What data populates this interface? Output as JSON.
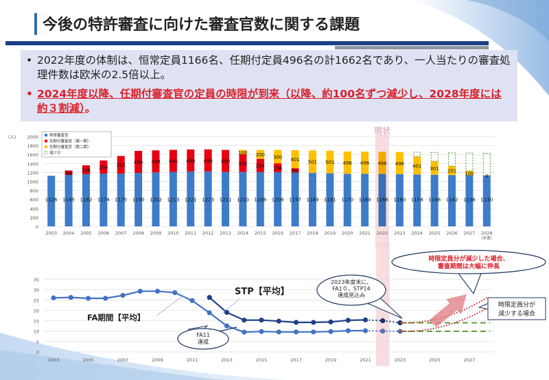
{
  "header": {
    "title": "今後の特許審査に向けた審査官数に関する課題"
  },
  "bullets": [
    {
      "marker": "•",
      "text": "2022年度の体制は、恒常定員1166名、任期付定員496名の計1662名であり、一人当たりの審査処理件数は欧米の2.5倍以上。"
    },
    {
      "marker": "•",
      "text_underlined": "2024年度以降、任期付審査官の定員の時限が到来（以降、約100名ずつ減少し、2028年度には約３割減）",
      "text_tail": "。"
    }
  ],
  "colors": {
    "regular": "#3d7cc9",
    "first": "#e60012",
    "second": "#ffc000",
    "reduction": "#5e9f3c",
    "fa_line": "#4472c4",
    "stp_line": "#1f3f88",
    "highlight": "#f6d5d8",
    "accent_red": "#d9202a"
  },
  "chart_data": [
    {
      "type": "bar",
      "stacked": true,
      "ylabel": "(人)",
      "xlabel_suffix": "(年度)",
      "ylim": [
        0,
        2000
      ],
      "yticks": [
        0,
        200,
        400,
        600,
        800,
        1000,
        1200,
        1400,
        1600,
        1800,
        2000
      ],
      "grid": true,
      "legend_position": "top-left",
      "highlight": {
        "category": "2022",
        "label": "現状"
      },
      "categories": [
        "2003",
        "2004",
        "2005",
        "2006",
        "2007",
        "2008",
        "2009",
        "2010",
        "2011",
        "2012",
        "2013",
        "2014",
        "2015",
        "2016",
        "2017",
        "2018",
        "2019",
        "2020",
        "2021",
        "2022",
        "2023",
        "2024",
        "2025",
        "2026",
        "2027",
        "2028"
      ],
      "series": [
        {
          "name": "恒常審査官",
          "values": [
            1126,
            1145,
            1162,
            1174,
            1175,
            1190,
            1202,
            1213,
            1221,
            1223,
            1211,
            1210,
            1208,
            1206,
            1197,
            1189,
            1181,
            1170,
            1169,
            1166,
            1160,
            1154,
            1148,
            1142,
            1136,
            1130
          ]
        },
        {
          "name": "任期付審査官（第一期）",
          "values": [
            0,
            98,
            196,
            294,
            392,
            490,
            490,
            490,
            490,
            490,
            490,
            392,
            294,
            196,
            98,
            0,
            0,
            0,
            0,
            0,
            0,
            0,
            0,
            0,
            0,
            0
          ]
        },
        {
          "name": "任期付審査官（第二期）",
          "values": [
            0,
            0,
            0,
            0,
            0,
            0,
            0,
            0,
            0,
            0,
            0,
            100,
            200,
            300,
            401,
            501,
            501,
            496,
            496,
            496,
            496,
            401,
            301,
            201,
            100,
            0
          ]
        },
        {
          "name": "減少分",
          "values": [
            0,
            0,
            0,
            0,
            0,
            0,
            0,
            0,
            0,
            0,
            0,
            0,
            0,
            0,
            0,
            0,
            0,
            0,
            0,
            0,
            0,
            95,
            195,
            295,
            396,
            496
          ]
        }
      ],
      "labels": {
        "regular": [
          "1126",
          "1145",
          "1162",
          "1174",
          "1175",
          "1190",
          "1202",
          "1213",
          "1221",
          "1223",
          "1211",
          "1210",
          "1208",
          "1206",
          "1197",
          "1189",
          "1181",
          "1170",
          "1169",
          "1166",
          "1160",
          "1154",
          "1148",
          "1142",
          "1136",
          "1130"
        ],
        "first": [
          "",
          "98",
          "196",
          "294",
          "392",
          "490",
          "490",
          "490",
          "490",
          "490",
          "490",
          "392",
          "294",
          "196",
          "98",
          "",
          "",
          "",
          "",
          "",
          "",
          "",
          "",
          "",
          "",
          ""
        ],
        "second": [
          "",
          "",
          "",
          "",
          "",
          "",
          "",
          "",
          "",
          "",
          "",
          "100",
          "200",
          "300",
          "401",
          "501",
          "501",
          "496",
          "496",
          "496",
          "496",
          "401",
          "301",
          "201",
          "100",
          "0"
        ]
      }
    },
    {
      "type": "line",
      "ylim": [
        0,
        35
      ],
      "yticks": [
        0,
        5,
        10,
        15,
        20,
        25,
        30,
        35
      ],
      "xticks": [
        "2003",
        "2005",
        "2007",
        "2009",
        "2011",
        "2013",
        "2015",
        "2017",
        "2019",
        "2021",
        "2023",
        "2025",
        "2027"
      ],
      "grid": true,
      "series": [
        {
          "name": "FA期間【平均】",
          "x": [
            2003,
            2004,
            2005,
            2006,
            2007,
            2008,
            2009,
            2010,
            2011,
            2012,
            2013,
            2014,
            2015,
            2016,
            2017,
            2018,
            2019,
            2020,
            2021
          ],
          "values": [
            26,
            26.2,
            25.8,
            25.8,
            27.2,
            29.2,
            29.2,
            28.5,
            24.7,
            18.8,
            12.5,
            9.5,
            9.8,
            9.6,
            9.6,
            9.6,
            9.8,
            10.2,
            10.2
          ],
          "forecast_x": [
            2022,
            2023
          ],
          "forecast": [
            10,
            9.9
          ]
        },
        {
          "name": "STP【平均】",
          "x": [
            2012,
            2013,
            2014,
            2015,
            2016,
            2017,
            2018,
            2019,
            2020,
            2021
          ],
          "values": [
            26.2,
            19,
            15.3,
            15.3,
            14.8,
            14.2,
            14.2,
            14.4,
            15.2,
            15.4
          ],
          "forecast_x": [
            2022,
            2023
          ],
          "forecast": [
            15,
            14
          ]
        }
      ],
      "projection_flat": {
        "from": 2023,
        "to": 2028,
        "fa": 9.9,
        "stp": 14
      },
      "projection_rise": {
        "from": 2023,
        "to": 2028,
        "fa_end": 21,
        "stp_end": 26
      },
      "annotations": {
        "fa_label": "FA期間【平均】",
        "stp_label": "STP【平均】",
        "fa11": [
          "FA11",
          "達成"
        ],
        "target": [
          "2023年度末に、",
          "FA1０，STP14",
          "達成見込み"
        ],
        "warning": [
          "時限定員分が減少した場合、",
          "審査期間は大幅に伸長"
        ],
        "scenario": [
          "時限定員分が",
          "減少する場合"
        ]
      }
    }
  ]
}
